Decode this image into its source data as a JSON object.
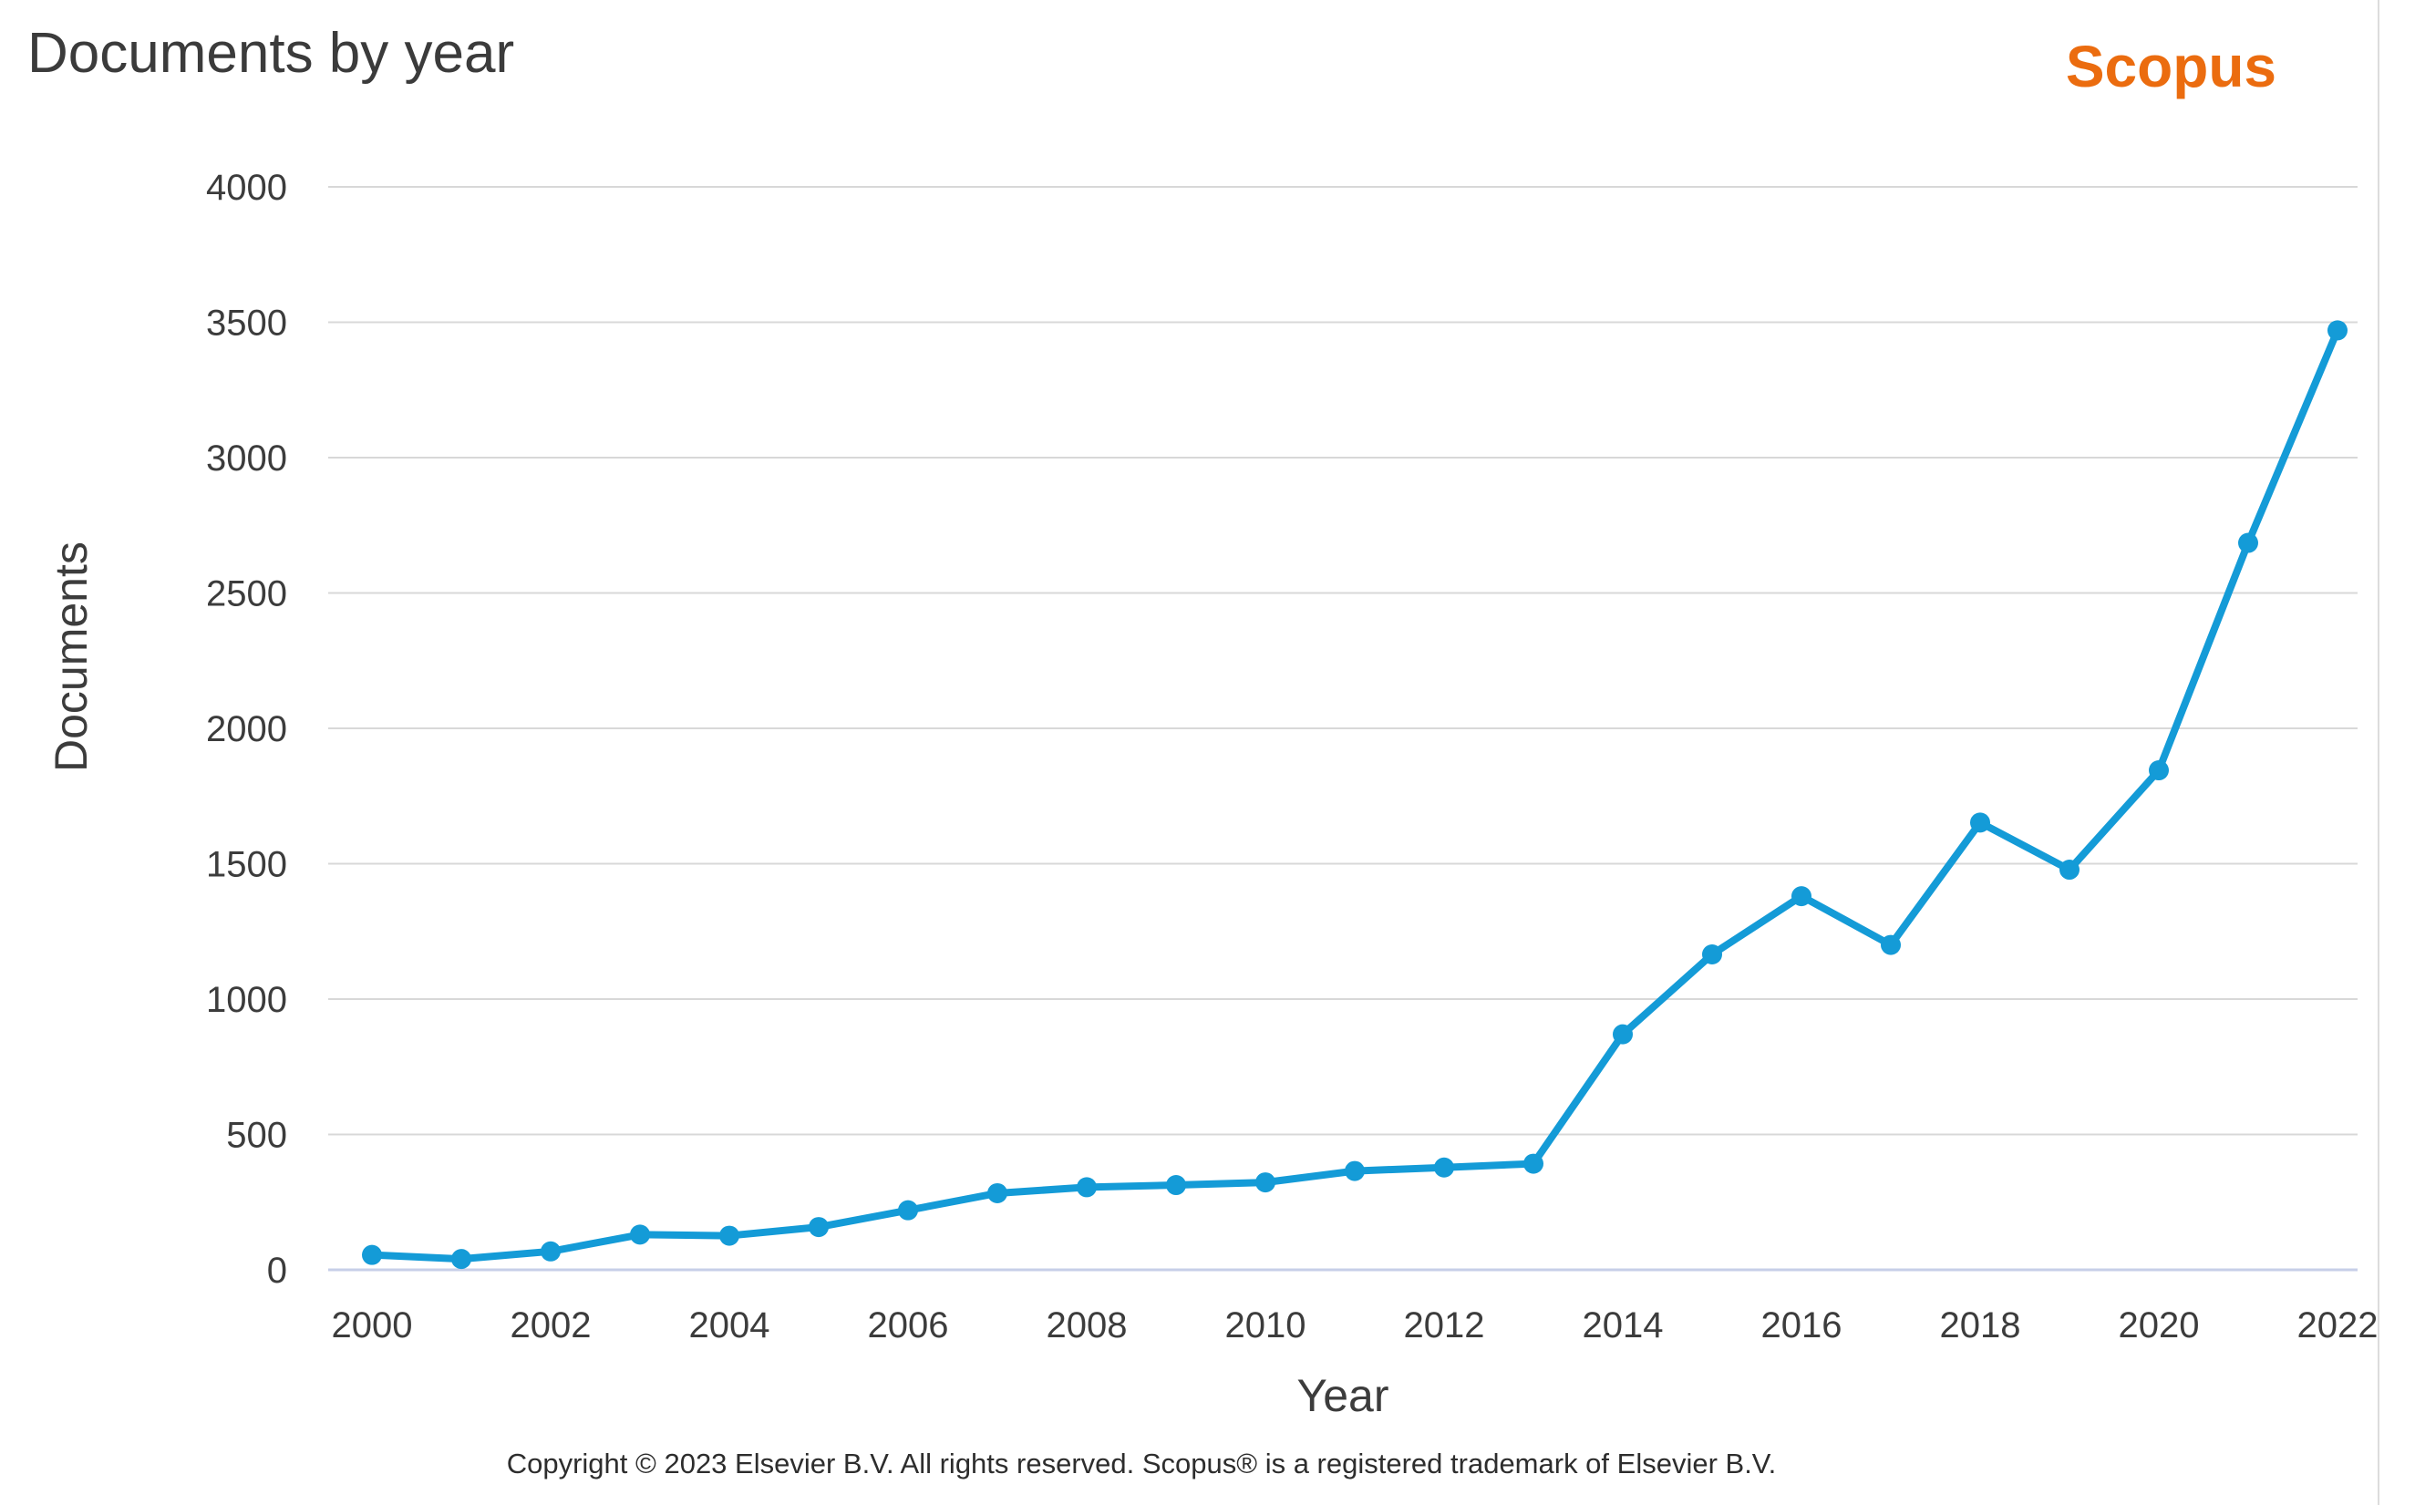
{
  "header": {
    "title": "Documents by year",
    "brand": "Scopus"
  },
  "axes": {
    "x_title": "Year",
    "y_title": "Documents"
  },
  "footer": {
    "copyright": "Copyright © 2023 Elsevier B.V. All rights reserved. Scopus® is a registered trademark of Elsevier B.V."
  },
  "colors": {
    "line": "#149bd7",
    "brand_orange": "#eb6c0f",
    "gridline": "#d8d8d8",
    "axis_zero_line": "#c7cfe8",
    "text_dark": "#3c3c3c"
  },
  "chart_data": {
    "type": "line",
    "title": "Documents by year",
    "xlabel": "Year",
    "ylabel": "Documents",
    "x": [
      2000,
      2001,
      2002,
      2003,
      2004,
      2005,
      2006,
      2007,
      2008,
      2009,
      2010,
      2011,
      2012,
      2013,
      2014,
      2015,
      2016,
      2017,
      2018,
      2019,
      2020,
      2021,
      2022
    ],
    "values": [
      55,
      40,
      68,
      130,
      126,
      158,
      220,
      283,
      305,
      313,
      323,
      365,
      378,
      392,
      870,
      1165,
      1380,
      1200,
      1652,
      1478,
      1845,
      2685,
      3470
    ],
    "ylim": [
      0,
      4000
    ],
    "yticks": [
      0,
      500,
      1000,
      1500,
      2000,
      2500,
      3000,
      3500,
      4000
    ],
    "xticks": [
      2000,
      2002,
      2004,
      2006,
      2008,
      2010,
      2012,
      2014,
      2016,
      2018,
      2020,
      2022
    ],
    "grid": true,
    "legend": "none",
    "marker": "circle"
  }
}
